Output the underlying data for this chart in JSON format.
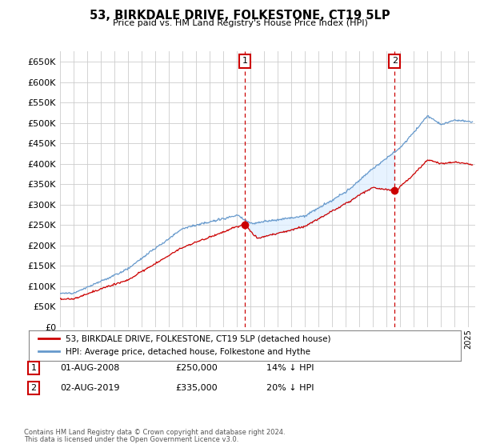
{
  "title": "53, BIRKDALE DRIVE, FOLKESTONE, CT19 5LP",
  "subtitle": "Price paid vs. HM Land Registry's House Price Index (HPI)",
  "ylim": [
    0,
    675000
  ],
  "yticks": [
    0,
    50000,
    100000,
    150000,
    200000,
    250000,
    300000,
    350000,
    400000,
    450000,
    500000,
    550000,
    600000,
    650000
  ],
  "xlim_start": 1995.0,
  "xlim_end": 2025.5,
  "grid_color": "#cccccc",
  "background_color": "#ffffff",
  "plot_bg_color": "#ffffff",
  "hpi_color": "#6699cc",
  "price_color": "#cc0000",
  "shade_color": "#ddeeff",
  "marker1_date": 2008.58,
  "marker1_label": "1",
  "marker1_text": "01-AUG-2008",
  "marker1_price": "£250,000",
  "marker1_hpi": "14% ↓ HPI",
  "marker1_value": 250000,
  "marker2_date": 2019.58,
  "marker2_label": "2",
  "marker2_text": "02-AUG-2019",
  "marker2_price": "£335,000",
  "marker2_hpi": "20% ↓ HPI",
  "marker2_value": 335000,
  "legend_label1": "53, BIRKDALE DRIVE, FOLKESTONE, CT19 5LP (detached house)",
  "legend_label2": "HPI: Average price, detached house, Folkestone and Hythe",
  "footer1": "Contains HM Land Registry data © Crown copyright and database right 2024.",
  "footer2": "This data is licensed under the Open Government Licence v3.0."
}
